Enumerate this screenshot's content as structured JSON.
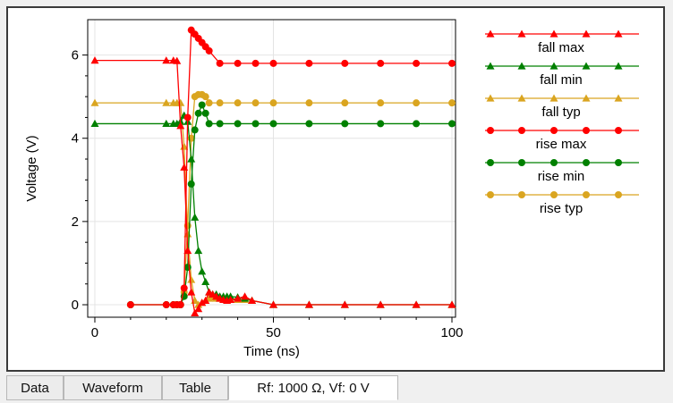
{
  "tabs": [
    {
      "label": "Data"
    },
    {
      "label": "Waveform"
    },
    {
      "label": "Table"
    },
    {
      "label": "Rf: 1000 Ω, Vf: 0 V"
    }
  ],
  "active_tab": 3,
  "chart_data": {
    "type": "line",
    "title": "",
    "xlabel": "Time (ns)",
    "ylabel": "Voltage (V)",
    "xlim": [
      -2,
      101
    ],
    "ylim": [
      -0.3,
      6.85
    ],
    "xticks": [
      0,
      50,
      100
    ],
    "yticks": [
      0,
      2,
      4,
      6
    ],
    "grid": true,
    "legend_position": "right",
    "series": [
      {
        "name": "fall max",
        "color": "#ff0000",
        "marker": "triangle",
        "x": [
          0,
          20,
          22,
          23,
          24,
          25,
          26,
          27,
          28,
          29,
          30,
          31,
          32,
          33,
          34,
          35,
          36,
          37,
          38,
          40,
          42,
          44,
          50,
          60,
          70,
          80,
          90,
          100
        ],
        "y": [
          5.87,
          5.87,
          5.87,
          5.86,
          4.3,
          3.3,
          1.3,
          0.3,
          -0.2,
          -0.1,
          0.05,
          0.1,
          0.3,
          0.25,
          0.2,
          0.15,
          0.12,
          0.1,
          0.12,
          0.15,
          0.2,
          0.1,
          0,
          0,
          0,
          0,
          0,
          0
        ]
      },
      {
        "name": "fall min",
        "color": "#008000",
        "marker": "triangle",
        "x": [
          0,
          20,
          22,
          23,
          24,
          25,
          26,
          27,
          28,
          29,
          30,
          31,
          32,
          33,
          34,
          35,
          36,
          37,
          38,
          40,
          42,
          44,
          50,
          60,
          70,
          80,
          90,
          100
        ],
        "y": [
          4.35,
          4.35,
          4.35,
          4.35,
          4.4,
          4.55,
          4.4,
          3.5,
          2.1,
          1.3,
          0.8,
          0.55,
          0.3,
          0.25,
          0.25,
          0.2,
          0.2,
          0.2,
          0.2,
          0.18,
          0.15,
          0.1,
          0,
          0,
          0,
          0,
          0,
          0
        ]
      },
      {
        "name": "fall typ",
        "color": "#daa520",
        "marker": "triangle",
        "x": [
          0,
          20,
          22,
          23,
          24,
          25,
          26,
          27,
          28,
          29,
          30,
          31,
          32,
          33,
          34,
          35,
          36,
          37,
          38,
          40,
          42,
          44,
          50,
          60,
          70,
          80,
          90,
          100
        ],
        "y": [
          4.85,
          4.85,
          4.85,
          4.85,
          4.85,
          3.8,
          1.7,
          0.6,
          0.1,
          0.0,
          0.05,
          0.1,
          0.15,
          0.18,
          0.15,
          0.15,
          0.12,
          0.12,
          0.12,
          0.12,
          0.12,
          0.1,
          0,
          0,
          0,
          0,
          0,
          0
        ]
      },
      {
        "name": "rise max",
        "color": "#ff0000",
        "marker": "circle",
        "x": [
          10,
          20,
          22,
          23,
          24,
          25,
          26,
          27,
          28,
          29,
          30,
          31,
          32,
          35,
          40,
          45,
          50,
          60,
          70,
          80,
          90,
          100
        ],
        "y": [
          0,
          0,
          0,
          0,
          0,
          0.4,
          4.5,
          6.6,
          6.5,
          6.4,
          6.3,
          6.2,
          6.1,
          5.8,
          5.8,
          5.8,
          5.8,
          5.8,
          5.8,
          5.8,
          5.8,
          5.8
        ]
      },
      {
        "name": "rise min",
        "color": "#008000",
        "marker": "circle",
        "x": [
          10,
          20,
          22,
          23,
          24,
          25,
          26,
          27,
          28,
          29,
          30,
          31,
          32,
          35,
          40,
          45,
          50,
          60,
          70,
          80,
          90,
          100
        ],
        "y": [
          0,
          0,
          0,
          0,
          0,
          0.2,
          0.9,
          2.9,
          4.2,
          4.6,
          4.8,
          4.6,
          4.35,
          4.35,
          4.35,
          4.35,
          4.35,
          4.35,
          4.35,
          4.35,
          4.35,
          4.35
        ]
      },
      {
        "name": "rise typ",
        "color": "#daa520",
        "marker": "circle",
        "x": [
          10,
          20,
          22,
          23,
          24,
          25,
          26,
          27,
          28,
          29,
          30,
          31,
          32,
          35,
          40,
          45,
          50,
          60,
          70,
          80,
          90,
          100
        ],
        "y": [
          0,
          0,
          0,
          0,
          0,
          0.3,
          1.9,
          4.0,
          5.0,
          5.05,
          5.05,
          5.0,
          4.85,
          4.85,
          4.85,
          4.85,
          4.85,
          4.85,
          4.85,
          4.85,
          4.85,
          4.85
        ]
      }
    ]
  }
}
